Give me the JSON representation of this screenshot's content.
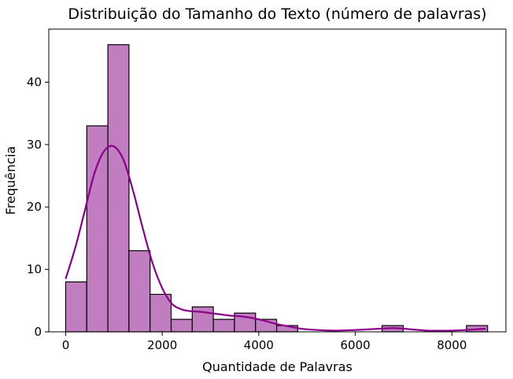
{
  "chart_data": {
    "type": "bar",
    "title": "Distribuição do Tamanho do Texto (número de palavras)",
    "xlabel": "Quantidade de Palavras",
    "ylabel": "Frequência",
    "xlim": [
      -350,
      9120
    ],
    "ylim": [
      0,
      48.5
    ],
    "xticks": [
      0,
      2000,
      4000,
      6000,
      8000
    ],
    "yticks": [
      0,
      10,
      20,
      30,
      40
    ],
    "bin_width": 437,
    "bins": [
      {
        "start": 0,
        "count": 8
      },
      {
        "start": 437,
        "count": 33
      },
      {
        "start": 874,
        "count": 46
      },
      {
        "start": 1311,
        "count": 13
      },
      {
        "start": 1748,
        "count": 6
      },
      {
        "start": 2185,
        "count": 2
      },
      {
        "start": 2622,
        "count": 4
      },
      {
        "start": 3059,
        "count": 2
      },
      {
        "start": 3496,
        "count": 3
      },
      {
        "start": 3933,
        "count": 2
      },
      {
        "start": 4370,
        "count": 1
      },
      {
        "start": 4807,
        "count": 0
      },
      {
        "start": 5244,
        "count": 0
      },
      {
        "start": 5681,
        "count": 0
      },
      {
        "start": 6118,
        "count": 0
      },
      {
        "start": 6555,
        "count": 1
      },
      {
        "start": 6992,
        "count": 0
      },
      {
        "start": 7429,
        "count": 0
      },
      {
        "start": 7866,
        "count": 0
      },
      {
        "start": 8303,
        "count": 1
      }
    ],
    "kde": {
      "x": [
        0,
        200,
        400,
        600,
        800,
        1000,
        1200,
        1400,
        1600,
        1800,
        2000,
        2200,
        2400,
        2600,
        2800,
        3000,
        3200,
        3400,
        3600,
        3800,
        4000,
        4200,
        4400,
        4600,
        4800,
        5000,
        5500,
        6000,
        6500,
        6800,
        7000,
        7500,
        8000,
        8300,
        8700
      ],
      "y": [
        8.5,
        13.5,
        19.5,
        25.5,
        29,
        29.7,
        27.5,
        22.5,
        16.5,
        11,
        7,
        4.5,
        3.6,
        3.3,
        3.2,
        3.0,
        2.8,
        2.6,
        2.5,
        2.3,
        2.0,
        1.6,
        1.2,
        0.9,
        0.6,
        0.4,
        0.2,
        0.3,
        0.5,
        0.6,
        0.5,
        0.2,
        0.2,
        0.3,
        0.5
      ]
    },
    "grid": false,
    "legend": "none",
    "colors": {
      "bar_fill": "#c07dc0",
      "bar_edge": "#000000",
      "kde_line": "#8b008b"
    }
  }
}
